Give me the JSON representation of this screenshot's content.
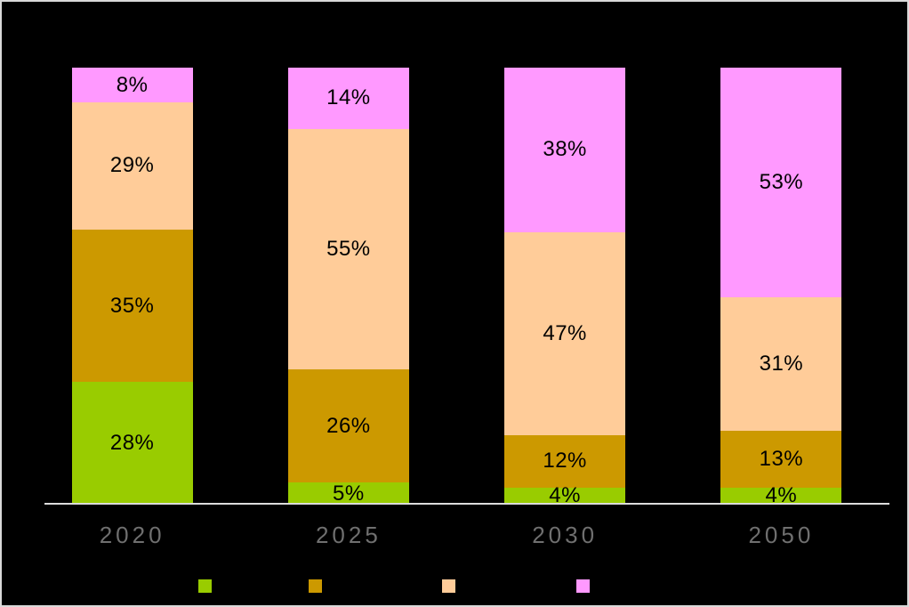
{
  "chart_data": {
    "type": "bar",
    "stacked": true,
    "percent_stacked": true,
    "title": "",
    "xlabel": "",
    "ylabel": "",
    "ylim": [
      0,
      100
    ],
    "grid": false,
    "categories": [
      "2020",
      "2025",
      "2030",
      "2050"
    ],
    "series": [
      {
        "id": "green",
        "name": "",
        "color": "#99CC00",
        "values": [
          28,
          5,
          4,
          4
        ],
        "labels": [
          "28%",
          "5%",
          "4%",
          "4%"
        ]
      },
      {
        "id": "gold",
        "name": "",
        "color": "#CC9900",
        "values": [
          35,
          26,
          12,
          13
        ],
        "labels": [
          "35%",
          "26%",
          "12%",
          "13%"
        ]
      },
      {
        "id": "peach",
        "name": "",
        "color": "#FFCC99",
        "values": [
          29,
          55,
          47,
          31
        ],
        "labels": [
          "29%",
          "55%",
          "47%",
          "31%"
        ]
      },
      {
        "id": "pink",
        "name": "",
        "color": "#FF99FF",
        "values": [
          8,
          14,
          38,
          53
        ],
        "labels": [
          "8%",
          "14%",
          "38%",
          "53%"
        ]
      }
    ],
    "value_label_format": "{v}%",
    "legend_position": "bottom",
    "legend_labels_visible": false
  },
  "colors": {
    "background": "#000000",
    "frame_border": "#d9d9d9",
    "axis_line": "#dcdcdc",
    "category_label": "#6f6f6f",
    "value_label": "#000000"
  }
}
